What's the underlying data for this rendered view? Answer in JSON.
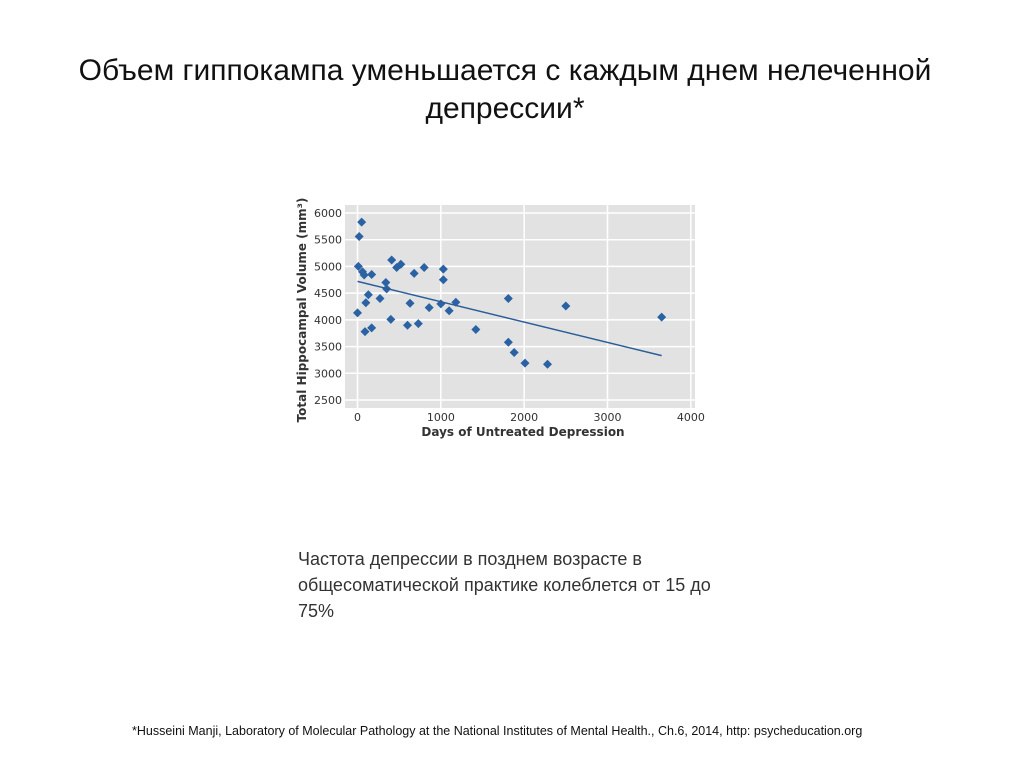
{
  "slide": {
    "title": "Объем гиппокампа уменьшается с каждым днем нелеченной депрессии*",
    "note": "Частота депрессии в позднем возрасте в общесоматической практике колеблется от 15 до 75%",
    "footnote": "*Husseini Manji, Laboratory of Molecular Pathology at the National Institutes of Mental Health., Ch.6, 2014, http: psycheducation.org"
  },
  "chart_data": {
    "type": "scatter",
    "xlabel": "Days of Untreated Depression",
    "ylabel": "Total Hippocampal Volume (mm³)",
    "xlim": [
      -150,
      4050
    ],
    "ylim": [
      2350,
      6150
    ],
    "xticks": [
      0,
      1000,
      2000,
      3000,
      4000
    ],
    "yticks": [
      2500,
      3000,
      3500,
      4000,
      4500,
      5000,
      5500,
      6000
    ],
    "grid": true,
    "colors": {
      "marker": "#2a62a4",
      "line": "#2a5d99",
      "background": "#e2e2e2"
    },
    "points": [
      [
        0,
        4130
      ],
      [
        50,
        5830
      ],
      [
        20,
        5560
      ],
      [
        10,
        5000
      ],
      [
        60,
        4900
      ],
      [
        80,
        4840
      ],
      [
        170,
        4850
      ],
      [
        100,
        4320
      ],
      [
        130,
        4470
      ],
      [
        90,
        3780
      ],
      [
        170,
        3850
      ],
      [
        270,
        4400
      ],
      [
        340,
        4700
      ],
      [
        350,
        4580
      ],
      [
        410,
        5120
      ],
      [
        470,
        4980
      ],
      [
        520,
        5040
      ],
      [
        400,
        4010
      ],
      [
        600,
        3900
      ],
      [
        630,
        4310
      ],
      [
        680,
        4870
      ],
      [
        730,
        3930
      ],
      [
        800,
        4980
      ],
      [
        860,
        4230
      ],
      [
        1000,
        4300
      ],
      [
        1030,
        4950
      ],
      [
        1030,
        4750
      ],
      [
        1100,
        4170
      ],
      [
        1180,
        4330
      ],
      [
        1420,
        3820
      ],
      [
        1810,
        4400
      ],
      [
        1810,
        3580
      ],
      [
        1880,
        3390
      ],
      [
        2010,
        3190
      ],
      [
        2280,
        3170
      ],
      [
        2500,
        4260
      ],
      [
        3650,
        4050
      ]
    ],
    "trendline": [
      [
        0,
        4720
      ],
      [
        3650,
        3330
      ]
    ]
  }
}
